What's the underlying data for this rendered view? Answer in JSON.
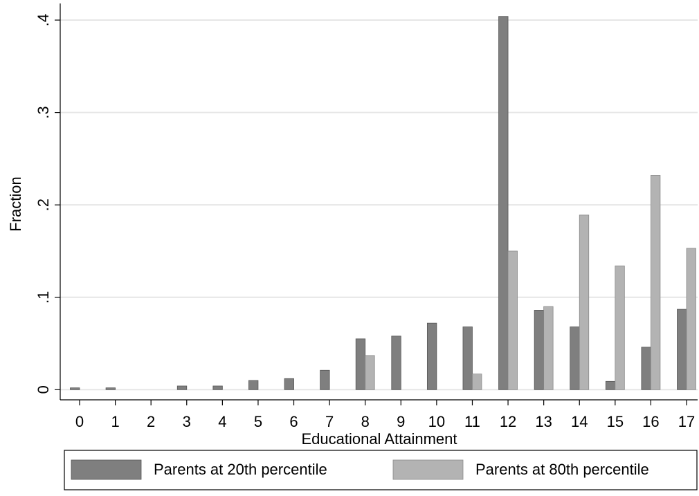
{
  "chart_data": {
    "type": "bar",
    "x_label": "Educational Attainment",
    "y_label": "Fraction",
    "categories": [
      "0",
      "1",
      "2",
      "3",
      "4",
      "5",
      "6",
      "7",
      "8",
      "9",
      "10",
      "11",
      "12",
      "13",
      "14",
      "15",
      "16",
      "17"
    ],
    "series": [
      {
        "name": "Parents at 20th percentile",
        "color": "#7f7f7f",
        "values": [
          0.002,
          0.002,
          0,
          0.004,
          0.004,
          0.01,
          0.012,
          0.021,
          0.055,
          0.058,
          0.072,
          0.068,
          0.404,
          0.086,
          0.068,
          0.009,
          0.046,
          0.087
        ]
      },
      {
        "name": "Parents at 80th percentile",
        "color": "#b3b3b3",
        "values": [
          0,
          0,
          0,
          0,
          0,
          0,
          0,
          0,
          0.037,
          0,
          0,
          0.017,
          0.15,
          0.09,
          0.189,
          0.134,
          0.232,
          0.153
        ]
      }
    ],
    "ylim": [
      -0.011,
      0.418
    ],
    "yticks": [
      0,
      {
        "value": 0.1,
        "label": ".1"
      },
      {
        "value": 0.2,
        "label": ".2"
      },
      {
        "value": 0.3,
        "label": ".3"
      },
      {
        "value": 0.4,
        "label": ".4"
      }
    ],
    "grid": true
  }
}
